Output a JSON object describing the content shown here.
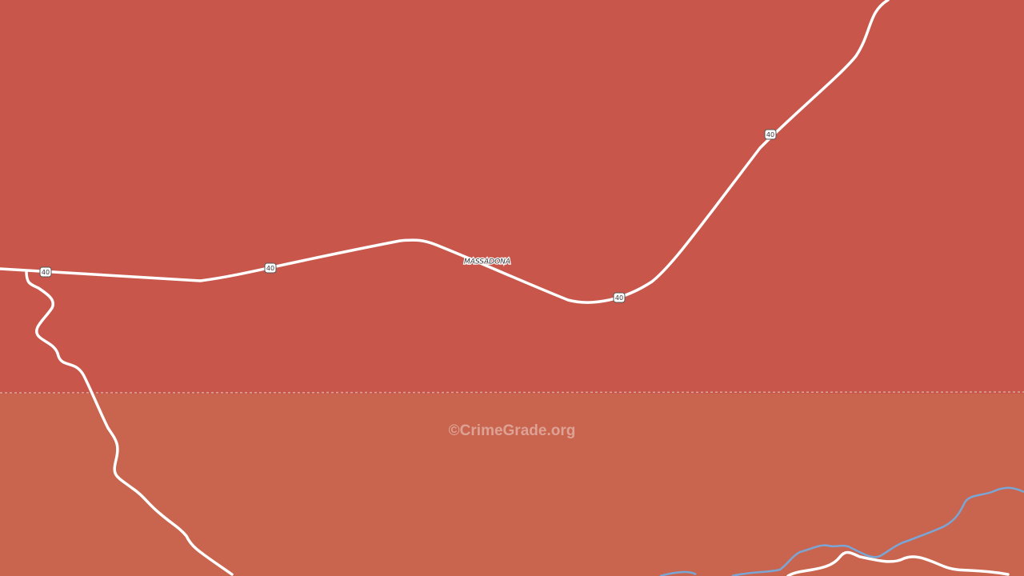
{
  "place_label": "MASSADONA",
  "route_shields": [
    "40",
    "40",
    "40",
    "40"
  ],
  "watermark": "©CrimeGrade.org"
}
